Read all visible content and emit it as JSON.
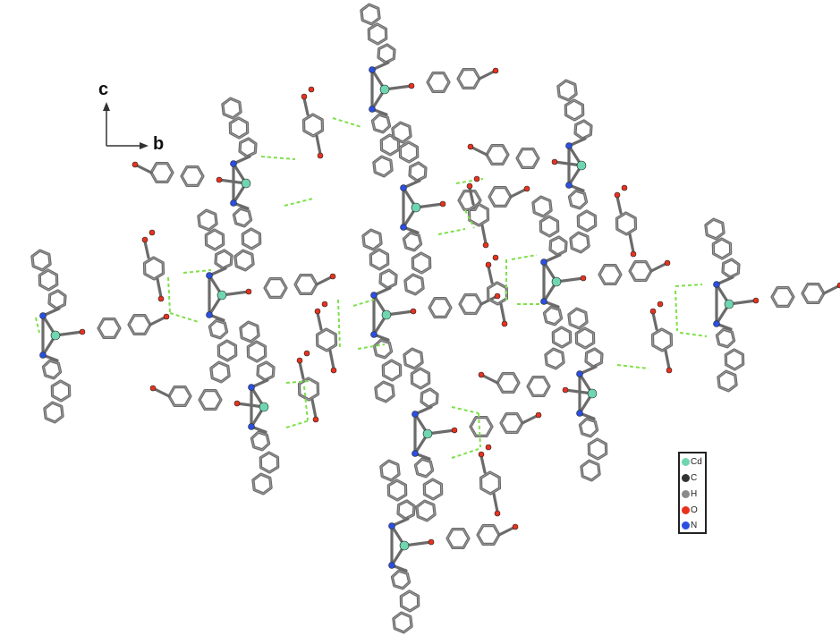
{
  "axes": {
    "c_label": "c",
    "b_label": "b"
  },
  "legend": {
    "items": [
      {
        "symbol": "Cd",
        "color": "#6fd6b0"
      },
      {
        "symbol": "C",
        "color": "#333333"
      },
      {
        "symbol": "H",
        "color": "#8a8a8a"
      },
      {
        "symbol": "O",
        "color": "#e8321e"
      },
      {
        "symbol": "N",
        "color": "#2a4fe0"
      }
    ]
  },
  "colors": {
    "bond": "#6b6b6b",
    "bond_dark": "#3a3a3a",
    "hbond": "#7ee04a",
    "cd": "#6fd6b0",
    "n": "#2a4fe0",
    "o": "#e8321e"
  }
}
